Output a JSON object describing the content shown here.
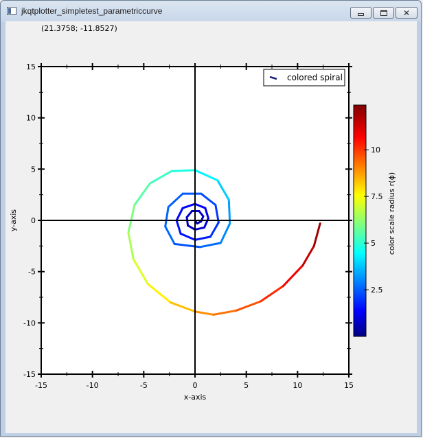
{
  "window": {
    "title": "jkqtplotter_simpletest_parametriccurve",
    "buttons": {
      "minimize": "minimize",
      "maximize": "maximize",
      "close": "close"
    }
  },
  "coords_readout": "(21.3758; -11.8527)",
  "colors": {
    "axis": "#000000",
    "plot_background": "#ffffff",
    "window_background": "#f0f0f0",
    "colormap": "jet"
  },
  "chart_data": {
    "type": "line",
    "xlabel": "x-axis",
    "ylabel": "y-axis",
    "xlim": [
      -15,
      15
    ],
    "ylim": [
      -15,
      15
    ],
    "xticks": [
      "-15",
      "-10",
      "-5",
      "0",
      "5",
      "10",
      "15"
    ],
    "yticks": [
      "15",
      "10",
      "5",
      "0",
      "-5",
      "-10",
      "-15"
    ],
    "grid": false,
    "zero_axes": true,
    "legend": {
      "position": "top-right",
      "entries": [
        "colored spiral"
      ]
    },
    "series": [
      {
        "name": "colored spiral",
        "color_by": "radius",
        "curve": "spiral",
        "points": [
          {
            "x": 0.0,
            "y": 0.0
          },
          {
            "x": 0.2,
            "y": -0.3
          },
          {
            "x": 0.6,
            "y": -0.1
          },
          {
            "x": 0.8,
            "y": 0.4
          },
          {
            "x": 0.4,
            "y": 0.9
          },
          {
            "x": -0.3,
            "y": 0.9
          },
          {
            "x": -0.8,
            "y": 0.3
          },
          {
            "x": -0.7,
            "y": -0.5
          },
          {
            "x": 0.0,
            "y": -0.9
          },
          {
            "x": 0.9,
            "y": -0.7
          },
          {
            "x": 1.3,
            "y": 0.2
          },
          {
            "x": 1.0,
            "y": 1.2
          },
          {
            "x": 0.0,
            "y": 1.6
          },
          {
            "x": -1.2,
            "y": 1.2
          },
          {
            "x": -1.8,
            "y": 0.0
          },
          {
            "x": -1.4,
            "y": -1.3
          },
          {
            "x": 0.0,
            "y": -1.9
          },
          {
            "x": 1.5,
            "y": -1.6
          },
          {
            "x": 2.3,
            "y": -0.2
          },
          {
            "x": 2.0,
            "y": 1.5
          },
          {
            "x": 0.6,
            "y": 2.6
          },
          {
            "x": -1.2,
            "y": 2.6
          },
          {
            "x": -2.6,
            "y": 1.3
          },
          {
            "x": -2.9,
            "y": -0.6
          },
          {
            "x": -2.0,
            "y": -2.3
          },
          {
            "x": 0.5,
            "y": -2.6
          },
          {
            "x": 2.5,
            "y": -2.2
          },
          {
            "x": 3.4,
            "y": -0.3
          },
          {
            "x": 3.3,
            "y": 2.0
          },
          {
            "x": 2.2,
            "y": 3.9
          },
          {
            "x": 0.0,
            "y": 4.9
          },
          {
            "x": -2.3,
            "y": 4.8
          },
          {
            "x": -4.4,
            "y": 3.6
          },
          {
            "x": -5.9,
            "y": 1.5
          },
          {
            "x": -6.5,
            "y": -1.2
          },
          {
            "x": -6.0,
            "y": -3.8
          },
          {
            "x": -4.6,
            "y": -6.2
          },
          {
            "x": -2.4,
            "y": -8.0
          },
          {
            "x": 0.0,
            "y": -8.9
          },
          {
            "x": 1.8,
            "y": -9.2
          },
          {
            "x": 4.0,
            "y": -8.8
          },
          {
            "x": 6.4,
            "y": -7.9
          },
          {
            "x": 8.6,
            "y": -6.4
          },
          {
            "x": 10.5,
            "y": -4.4
          },
          {
            "x": 11.6,
            "y": -2.5
          },
          {
            "x": 12.2,
            "y": -0.3
          }
        ]
      }
    ],
    "colorbar": {
      "label": "color scale radius r(ϕ)",
      "range": [
        0,
        12.4
      ],
      "ticks": [
        "2.5",
        "5",
        "7.5",
        "10"
      ],
      "tick_values": [
        2.5,
        5,
        7.5,
        10
      ],
      "colormap": "jet"
    }
  }
}
